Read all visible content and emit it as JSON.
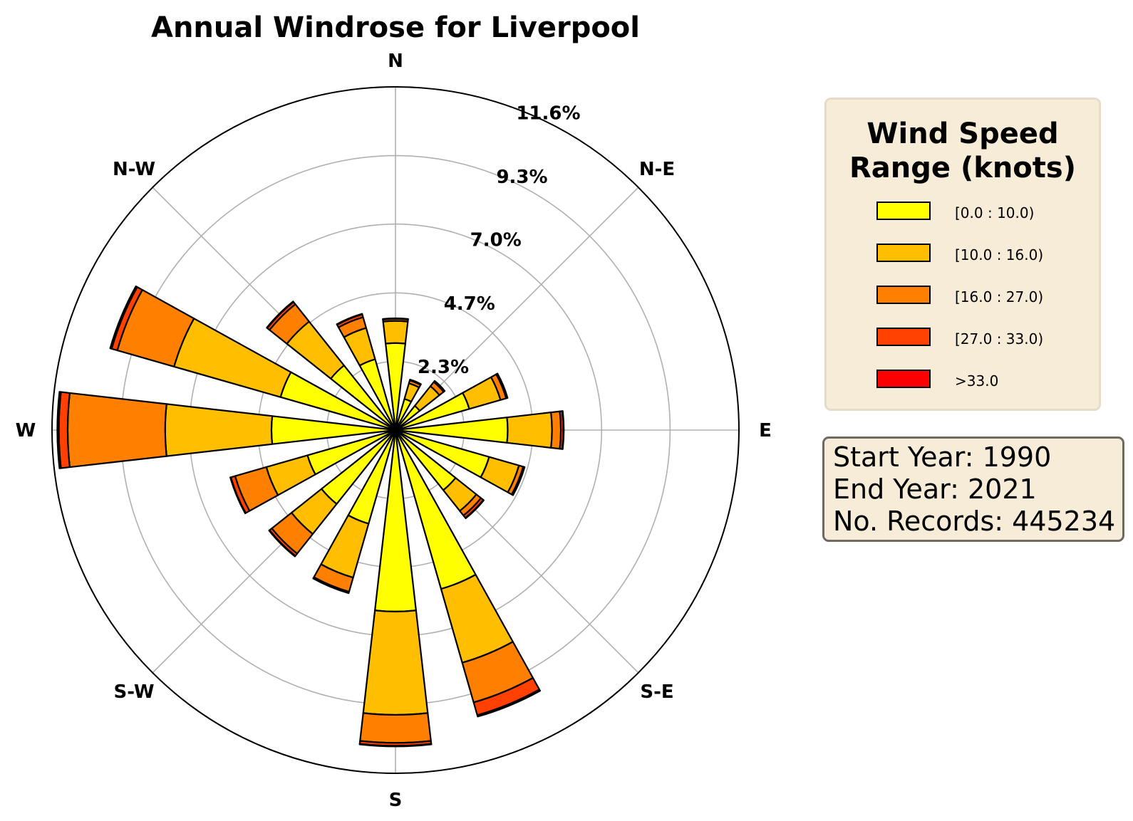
{
  "chart_data": {
    "type": "windrose",
    "title": "Annual Windrose for Liverpool",
    "directions_labels": [
      "N",
      "N-E",
      "E",
      "S-E",
      "S",
      "S-W",
      "W",
      "N-W"
    ],
    "radial_ticks": [
      "2.3%",
      "4.7%",
      "7.0%",
      "9.3%",
      "11.6%"
    ],
    "radial_tick_values": [
      2.33,
      4.65,
      6.98,
      9.3,
      11.63
    ],
    "rmax": 11.63,
    "grid": true,
    "sector_width_deg": 13,
    "series": [
      {
        "name": "[0.0 : 10.0)",
        "color": "#ffff00"
      },
      {
        "name": "[10.0 : 16.0)",
        "color": "#ffbf00"
      },
      {
        "name": "[16.0 : 27.0)",
        "color": "#ff8000"
      },
      {
        "name": "[27.0 : 33.0)",
        "color": "#ff4000"
      },
      {
        "name": ">33.0",
        "color": "#ff0000"
      }
    ],
    "sectors": [
      {
        "angle": 0,
        "values": [
          2.95,
          0.75,
          0.07,
          0.02,
          0.0
        ]
      },
      {
        "angle": 22.5,
        "values": [
          1.1,
          0.55,
          0.1,
          0.03,
          0.0
        ]
      },
      {
        "angle": 45,
        "values": [
          1.05,
          0.85,
          0.18,
          0.05,
          0.0
        ]
      },
      {
        "angle": 67.5,
        "values": [
          2.6,
          1.1,
          0.2,
          0.05,
          0.0
        ]
      },
      {
        "angle": 90,
        "values": [
          3.8,
          1.5,
          0.3,
          0.08,
          0.02
        ]
      },
      {
        "angle": 112.5,
        "values": [
          3.3,
          1.05,
          0.15,
          0.05,
          0.0
        ]
      },
      {
        "angle": 135,
        "values": [
          2.6,
          0.9,
          0.2,
          0.1,
          0.02
        ]
      },
      {
        "angle": 157.5,
        "values": [
          5.6,
          2.6,
          1.4,
          0.45,
          0.05
        ]
      },
      {
        "angle": 180,
        "values": [
          6.15,
          3.5,
          0.95,
          0.1,
          0.02
        ]
      },
      {
        "angle": 202.5,
        "values": [
          3.3,
          1.9,
          0.5,
          0.05,
          0.0
        ]
      },
      {
        "angle": 225,
        "values": [
          3.2,
          1.3,
          0.85,
          0.1,
          0.02
        ]
      },
      {
        "angle": 247.5,
        "values": [
          3.1,
          1.45,
          1.1,
          0.15,
          0.02
        ]
      },
      {
        "angle": 270,
        "values": [
          4.2,
          3.6,
          3.3,
          0.3,
          0.05
        ]
      },
      {
        "angle": 292.5,
        "values": [
          4.05,
          3.75,
          2.0,
          0.2,
          0.05
        ]
      },
      {
        "angle": 315,
        "values": [
          2.8,
          1.9,
          0.75,
          0.1,
          0.02
        ]
      },
      {
        "angle": 337.5,
        "values": [
          2.5,
          1.1,
          0.38,
          0.1,
          0.02
        ]
      }
    ]
  },
  "legend": {
    "title_line1": "Wind Speed",
    "title_line2": "Range (knots)",
    "items": [
      {
        "label": "[0.0 : 10.0)",
        "color": "#ffff00"
      },
      {
        "label": "[10.0 : 16.0)",
        "color": "#ffbf00"
      },
      {
        "label": "[16.0 : 27.0)",
        "color": "#ff8000"
      },
      {
        "label": "[27.0 : 33.0)",
        "color": "#ff4000"
      },
      {
        "label": ">33.0",
        "color": "#ff0000"
      }
    ]
  },
  "info": {
    "start_year": "Start Year: 1990",
    "end_year": "End Year: 2021",
    "records": "No. Records: 445234"
  }
}
